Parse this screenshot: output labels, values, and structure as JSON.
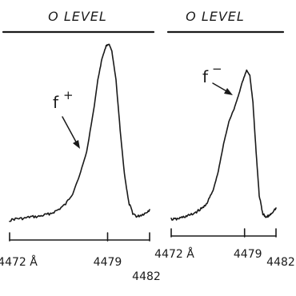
{
  "chart_data": [
    {
      "type": "line",
      "title": "O LEVEL",
      "xlabel": "",
      "ylabel": "",
      "xlim": [
        4472,
        4482
      ],
      "ylim": [
        0,
        1
      ],
      "grid": false,
      "x_ticks": [
        4472,
        4479,
        4482
      ],
      "x_tick_labels": [
        "4472 Å",
        "4479",
        "4482"
      ],
      "annotations": [
        {
          "text": "f",
          "superscript": "+",
          "x": 4477.8,
          "y": 0.43
        }
      ],
      "series": [
        {
          "x": [
            4472.0,
            4472.5,
            4473.0,
            4473.5,
            4474.0,
            4474.5,
            4475.0,
            4475.5,
            4476.0,
            4476.5,
            4477.0,
            4477.5,
            4478.0,
            4478.3,
            4478.6,
            4478.9,
            4479.1,
            4479.3,
            4479.6,
            4479.9,
            4480.2,
            4480.5,
            4480.8,
            4481.1,
            4481.4,
            4481.7,
            4482.0
          ],
          "y": [
            0.02,
            0.03,
            0.03,
            0.04,
            0.04,
            0.05,
            0.06,
            0.08,
            0.11,
            0.17,
            0.27,
            0.4,
            0.63,
            0.8,
            0.92,
            0.99,
            1.0,
            0.96,
            0.8,
            0.52,
            0.28,
            0.12,
            0.06,
            0.04,
            0.05,
            0.06,
            0.08
          ]
        }
      ]
    },
    {
      "type": "line",
      "title": "O LEVEL",
      "xlabel": "",
      "ylabel": "",
      "xlim": [
        4472,
        4482
      ],
      "ylim": [
        0,
        1
      ],
      "grid": false,
      "x_ticks": [
        4472,
        4479,
        4482
      ],
      "x_tick_labels": [
        "4472 Å",
        "4479",
        "4482"
      ],
      "annotations": [
        {
          "text": "f",
          "superscript": "−",
          "x": 4478.6,
          "y": 0.72
        }
      ],
      "series": [
        {
          "x": [
            4472.0,
            4472.5,
            4473.0,
            4473.5,
            4474.0,
            4474.5,
            4475.0,
            4475.5,
            4476.0,
            4476.5,
            4477.0,
            4477.5,
            4478.0,
            4478.4,
            4478.8,
            4479.2,
            4479.5,
            4479.8,
            4480.1,
            4480.4,
            4480.7,
            4481.0,
            4481.3,
            4481.6,
            4482.0
          ],
          "y": [
            0.03,
            0.03,
            0.04,
            0.05,
            0.06,
            0.08,
            0.1,
            0.14,
            0.21,
            0.33,
            0.5,
            0.64,
            0.72,
            0.8,
            0.89,
            0.96,
            0.93,
            0.76,
            0.45,
            0.18,
            0.07,
            0.04,
            0.05,
            0.07,
            0.1
          ]
        }
      ]
    }
  ]
}
